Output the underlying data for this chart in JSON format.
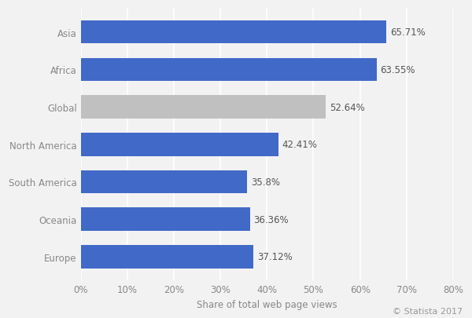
{
  "categories": [
    "Asia",
    "Africa",
    "Global",
    "North America",
    "South America",
    "Oceania",
    "Europe"
  ],
  "values": [
    65.71,
    63.55,
    52.64,
    42.41,
    35.8,
    36.36,
    37.12
  ],
  "labels": [
    "65.71%",
    "63.55%",
    "52.64%",
    "42.41%",
    "35.8%",
    "36.36%",
    "37.12%"
  ],
  "bar_colors": [
    "#4169c8",
    "#4169c8",
    "#c0c0c0",
    "#4169c8",
    "#4169c8",
    "#4169c8",
    "#4169c8"
  ],
  "xlabel": "Share of total web page views",
  "xlim": [
    0,
    80
  ],
  "xticks": [
    0,
    10,
    20,
    30,
    40,
    50,
    60,
    70,
    80
  ],
  "xtick_labels": [
    "0%",
    "10%",
    "20%",
    "30%",
    "40%",
    "50%",
    "60%",
    "70%",
    "80%"
  ],
  "figure_bg_color": "#f2f2f2",
  "plot_bg_color": "#f2f2f2",
  "bar_height": 0.62,
  "label_fontsize": 8.5,
  "tick_fontsize": 8.5,
  "xlabel_fontsize": 8.5,
  "copyright_text": "© Statista 2017",
  "label_color": "#555555",
  "tick_color": "#888888"
}
